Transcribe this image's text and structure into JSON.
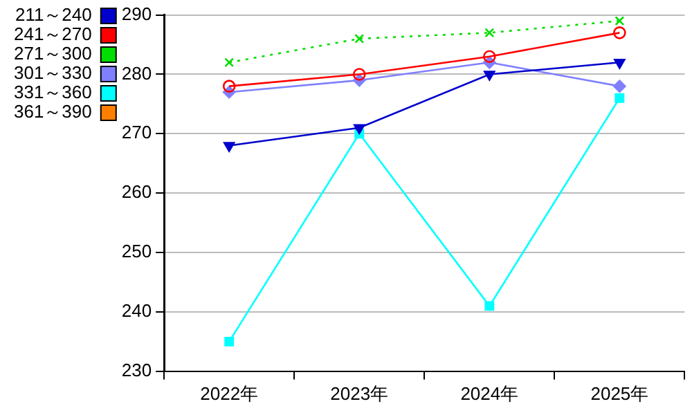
{
  "chart_data": {
    "type": "line",
    "categories": [
      "2022年",
      "2023年",
      "2024年",
      "2025年"
    ],
    "series": [
      {
        "name": "211～240",
        "color": "#0000cc",
        "marker": "triangle",
        "values": [
          268,
          271,
          280,
          282
        ]
      },
      {
        "name": "241～270",
        "color": "#ff0000",
        "marker": "circle",
        "values": [
          278,
          280,
          283,
          287
        ]
      },
      {
        "name": "271～300",
        "color": "#00dd00",
        "marker": "cross",
        "line_style": "dotted",
        "values": [
          282,
          286,
          287,
          289
        ]
      },
      {
        "name": "301～330",
        "color": "#8080ff",
        "marker": "diamond",
        "values": [
          277,
          279,
          282,
          278
        ]
      },
      {
        "name": "331～360",
        "color": "#00ffff",
        "marker": "square",
        "values": [
          235,
          270,
          241,
          276
        ]
      },
      {
        "name": "361～390",
        "color": "#ff8000",
        "marker": "square",
        "values": [
          null,
          null,
          null,
          null
        ]
      }
    ],
    "ylim": [
      230,
      290
    ],
    "yticks": [
      230,
      240,
      250,
      260,
      270,
      280,
      290
    ],
    "grid": "y",
    "legend": "top left"
  }
}
